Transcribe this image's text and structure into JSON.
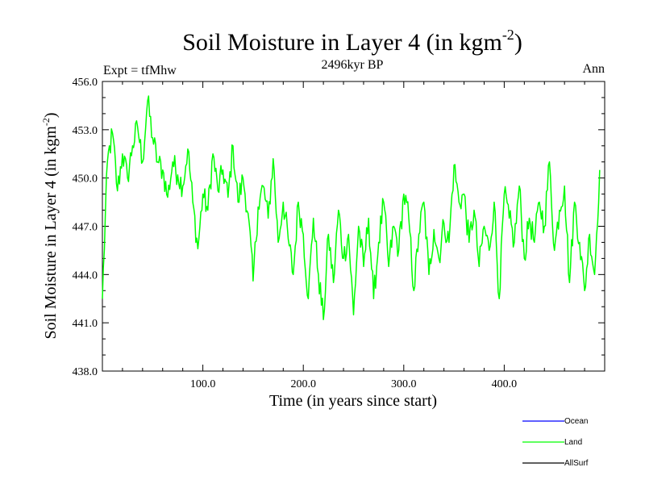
{
  "chart_data": {
    "type": "line",
    "title": "Soil Moisture in Layer 4 (in kgm",
    "title_sup": "-2",
    "title_end": ")",
    "subtitle": "2496kyr BP",
    "left_label": "Expt = tfMhw",
    "right_label": "Ann",
    "xlabel": "Time (in years since start)",
    "ylabel": "Soil Moisture in Layer 4 (in kgm",
    "ylabel_sup": "-2",
    "ylabel_end": ")",
    "xlim": [
      0,
      500
    ],
    "ylim": [
      438,
      456
    ],
    "x_ticks": [
      100,
      200,
      300,
      400
    ],
    "x_tick_labels": [
      "100.0",
      "200.0",
      "300.0",
      "400.0"
    ],
    "y_ticks": [
      438,
      441,
      444,
      447,
      450,
      453,
      456
    ],
    "y_tick_labels": [
      "438.0",
      "441.0",
      "444.0",
      "447.0",
      "450.0",
      "453.0",
      "456.0"
    ],
    "legend": [
      {
        "name": "Ocean",
        "color": "#0000ff"
      },
      {
        "name": "Land",
        "color": "#00ff00"
      },
      {
        "name": "AllSurf",
        "color": "#000000"
      }
    ],
    "series": [
      {
        "name": "Land",
        "color": "#00ff00",
        "x": [
          0,
          5,
          10,
          15,
          20,
          25,
          30,
          35,
          40,
          45,
          50,
          55,
          60,
          65,
          70,
          75,
          80,
          85,
          90,
          95,
          100,
          105,
          110,
          115,
          120,
          125,
          130,
          135,
          140,
          145,
          150,
          155,
          160,
          165,
          170,
          175,
          180,
          185,
          190,
          195,
          200,
          205,
          210,
          215,
          220,
          225,
          230,
          235,
          240,
          245,
          250,
          255,
          260,
          265,
          270,
          275,
          280,
          285,
          290,
          295,
          300,
          305,
          310,
          315,
          320,
          325,
          330,
          335,
          340,
          345,
          350,
          355,
          360,
          365,
          370,
          375,
          380,
          385,
          390,
          395,
          400,
          405,
          410,
          415,
          420,
          425,
          430,
          435,
          440,
          445,
          450,
          455,
          460,
          465,
          470,
          475,
          480,
          485,
          490,
          495
        ],
        "values": [
          442.5,
          451.0,
          452.8,
          449.2,
          451.5,
          450.0,
          452.0,
          453.2,
          451.0,
          454.8,
          452.5,
          451.0,
          450.5,
          448.8,
          451.0,
          450.2,
          449.5,
          451.8,
          448.5,
          445.6,
          449.0,
          448.0,
          451.5,
          449.2,
          450.5,
          448.8,
          452.0,
          448.5,
          450.0,
          447.8,
          443.6,
          448.2,
          449.5,
          447.5,
          451.2,
          446.0,
          448.5,
          446.2,
          444.0,
          448.5,
          446.5,
          442.5,
          447.5,
          444.0,
          441.2,
          446.5,
          443.5,
          448.0,
          445.0,
          446.5,
          441.5,
          447.0,
          444.5,
          447.5,
          442.5,
          446.0,
          448.5,
          444.5,
          447.0,
          445.5,
          449.0,
          447.5,
          443.0,
          446.5,
          448.5,
          444.0,
          446.8,
          445.0,
          447.2,
          446.0,
          450.8,
          448.5,
          449.0,
          446.0,
          448.0,
          444.5,
          447.0,
          445.5,
          448.5,
          442.5,
          449.0,
          447.5,
          446.0,
          449.5,
          445.0,
          447.5,
          446.0,
          448.5,
          447.0,
          451.0,
          445.5,
          448.0,
          449.5,
          443.5,
          448.5,
          446.0,
          443.0,
          446.5,
          444.0,
          450.5
        ]
      }
    ]
  }
}
